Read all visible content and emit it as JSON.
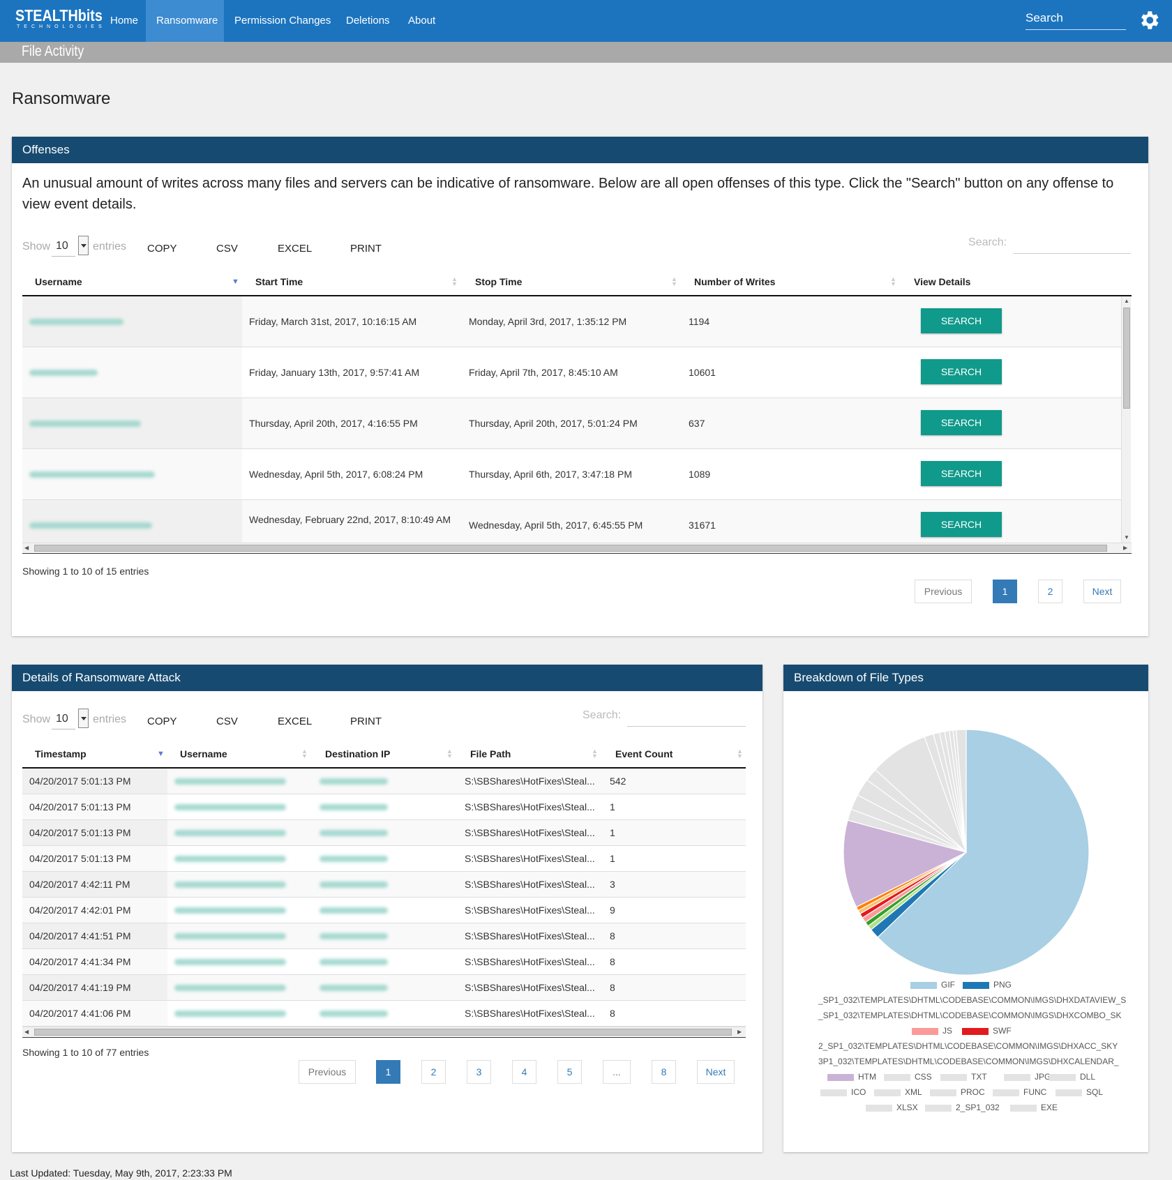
{
  "nav": {
    "logo_main": "STEALTHbits",
    "logo_sub": "TECHNOLOGIES",
    "items": [
      {
        "label": "Home",
        "active": false
      },
      {
        "label": "Ransomware",
        "active": true
      },
      {
        "label": "Permission Changes",
        "active": false
      },
      {
        "label": "Deletions",
        "active": false
      },
      {
        "label": "About",
        "active": false
      }
    ],
    "search_label": "Search",
    "settings_icon": "gear-icon"
  },
  "subheader": {
    "title": "File Activity"
  },
  "page": {
    "title": "Ransomware"
  },
  "offenses": {
    "title": "Offenses",
    "description": "An unusual amount of writes across many files and servers can be indicative of ransomware. Below are all open offenses of this type. Click the \"Search\" button on any offense to view event details.",
    "show_label": "Show",
    "show_value": "10",
    "entries_label": "entries",
    "buttons": [
      "COPY",
      "CSV",
      "EXCEL",
      "PRINT"
    ],
    "search_label": "Search:",
    "columns": [
      "Username",
      "Start Time",
      "Stop Time",
      "Number of Writes",
      "View Details"
    ],
    "rows": [
      {
        "start": "Friday, March 31st, 2017, 10:16:15 AM",
        "stop": "Monday, April 3rd, 2017, 1:35:12 PM",
        "writes": "1194",
        "action": "SEARCH"
      },
      {
        "start": "Friday, January 13th, 2017, 9:57:41 AM",
        "stop": "Friday, April 7th, 2017, 8:45:10 AM",
        "writes": "10601",
        "action": "SEARCH"
      },
      {
        "start": "Thursday, April 20th, 2017, 4:16:55 PM",
        "stop": "Thursday, April 20th, 2017, 5:01:24 PM",
        "writes": "637",
        "action": "SEARCH"
      },
      {
        "start": "Wednesday, April 5th, 2017, 6:08:24 PM",
        "stop": "Thursday, April 6th, 2017, 3:47:18 PM",
        "writes": "1089",
        "action": "SEARCH"
      },
      {
        "start": "Wednesday, February 22nd, 2017, 8:10:49 AM",
        "stop": "Wednesday, April 5th, 2017, 6:45:55 PM",
        "writes": "31671",
        "action": "SEARCH"
      }
    ],
    "info": "Showing 1 to 10 of 15 entries",
    "pagination": [
      "Previous",
      "1",
      "2",
      "Next"
    ]
  },
  "details": {
    "title": "Details of Ransomware Attack",
    "show_label": "Show",
    "show_value": "10",
    "entries_label": "entries",
    "buttons": [
      "COPY",
      "CSV",
      "EXCEL",
      "PRINT"
    ],
    "search_label": "Search:",
    "columns": [
      "Timestamp",
      "Username",
      "Destination IP",
      "File Path",
      "Event Count"
    ],
    "rows": [
      {
        "timestamp": "04/20/2017 5:01:13 PM",
        "path": "S:\\SBShares\\HotFixes\\Steal...",
        "count": "542"
      },
      {
        "timestamp": "04/20/2017 5:01:13 PM",
        "path": "S:\\SBShares\\HotFixes\\Steal...",
        "count": "1"
      },
      {
        "timestamp": "04/20/2017 5:01:13 PM",
        "path": "S:\\SBShares\\HotFixes\\Steal...",
        "count": "1"
      },
      {
        "timestamp": "04/20/2017 5:01:13 PM",
        "path": "S:\\SBShares\\HotFixes\\Steal...",
        "count": "1"
      },
      {
        "timestamp": "04/20/2017 4:42:11 PM",
        "path": "S:\\SBShares\\HotFixes\\Steal...",
        "count": "3"
      },
      {
        "timestamp": "04/20/2017 4:42:01 PM",
        "path": "S:\\SBShares\\HotFixes\\Steal...",
        "count": "9"
      },
      {
        "timestamp": "04/20/2017 4:41:51 PM",
        "path": "S:\\SBShares\\HotFixes\\Steal...",
        "count": "8"
      },
      {
        "timestamp": "04/20/2017 4:41:34 PM",
        "path": "S:\\SBShares\\HotFixes\\Steal...",
        "count": "8"
      },
      {
        "timestamp": "04/20/2017 4:41:19 PM",
        "path": "S:\\SBShares\\HotFixes\\Steal...",
        "count": "8"
      },
      {
        "timestamp": "04/20/2017 4:41:06 PM",
        "path": "S:\\SBShares\\HotFixes\\Steal...",
        "count": "8"
      }
    ],
    "info": "Showing 1 to 10 of 77 entries",
    "pagination": [
      "Previous",
      "1",
      "2",
      "3",
      "4",
      "5",
      "...",
      "8",
      "Next"
    ]
  },
  "breakdown": {
    "title": "Breakdown of File Types",
    "chart_data": {
      "type": "pie",
      "slices": [
        {
          "label": "GIF",
          "value": 62.5,
          "color": "#a8cfe3"
        },
        {
          "label": "PNG",
          "value": 1.3,
          "color": "#1f78b4"
        },
        {
          "label": "_SP1_032\\TEMPLATES\\DHTML\\CODEBASE\\COMMON\\IMGS\\DHXDATAVIEW_S",
          "value": 0.6,
          "color": "#b2df8a"
        },
        {
          "label": "_SP1_032\\TEMPLATES\\DHTML\\CODEBASE\\COMMON\\IMGS\\DHXCOMBO_SK",
          "value": 0.6,
          "color": "#33a02c"
        },
        {
          "label": "JS",
          "value": 0.7,
          "color": "#fb9a99"
        },
        {
          "label": "SWF",
          "value": 0.6,
          "color": "#e31a1c"
        },
        {
          "label": "2_SP1_032\\TEMPLATES\\DHTML\\CODEBASE\\COMMON\\IMGS\\DHXACC_SKY",
          "value": 0.5,
          "color": "#fdbf6f"
        },
        {
          "label": "3P1_032\\TEMPLATES\\DHTML\\CODEBASE\\COMMON\\IMGS\\DHXCALENDAR_",
          "value": 0.5,
          "color": "#ff7f00"
        },
        {
          "label": "HTM",
          "value": 11.5,
          "color": "#cab2d6"
        },
        {
          "label": "CSS",
          "value": 1.5,
          "color": "#e3e3e3"
        },
        {
          "label": "TXT",
          "value": 2.0,
          "color": "#e3e3e3"
        },
        {
          "label": "JPG",
          "value": 2.3,
          "color": "#e3e3e3"
        },
        {
          "label": "DLL",
          "value": 1.7,
          "color": "#e3e3e3"
        },
        {
          "label": "ICO",
          "value": 7.7,
          "color": "#e3e3e3"
        },
        {
          "label": "XML",
          "value": 1.2,
          "color": "#e3e3e3"
        },
        {
          "label": "PROC",
          "value": 0.8,
          "color": "#e3e3e3"
        },
        {
          "label": "FUNC",
          "value": 0.7,
          "color": "#e3e3e3"
        },
        {
          "label": "SQL",
          "value": 0.6,
          "color": "#e3e3e3"
        },
        {
          "label": "XLSX",
          "value": 0.5,
          "color": "#e3e3e3"
        },
        {
          "label": "2_SP1_032",
          "value": 0.4,
          "color": "#e3e3e3"
        },
        {
          "label": "EXE",
          "value": 1.3,
          "color": "#e3e3e3"
        }
      ],
      "legend_placement": "bottom"
    }
  },
  "footer": {
    "text": "Last Updated: Tuesday, May 9th, 2017, 2:23:33 PM"
  }
}
